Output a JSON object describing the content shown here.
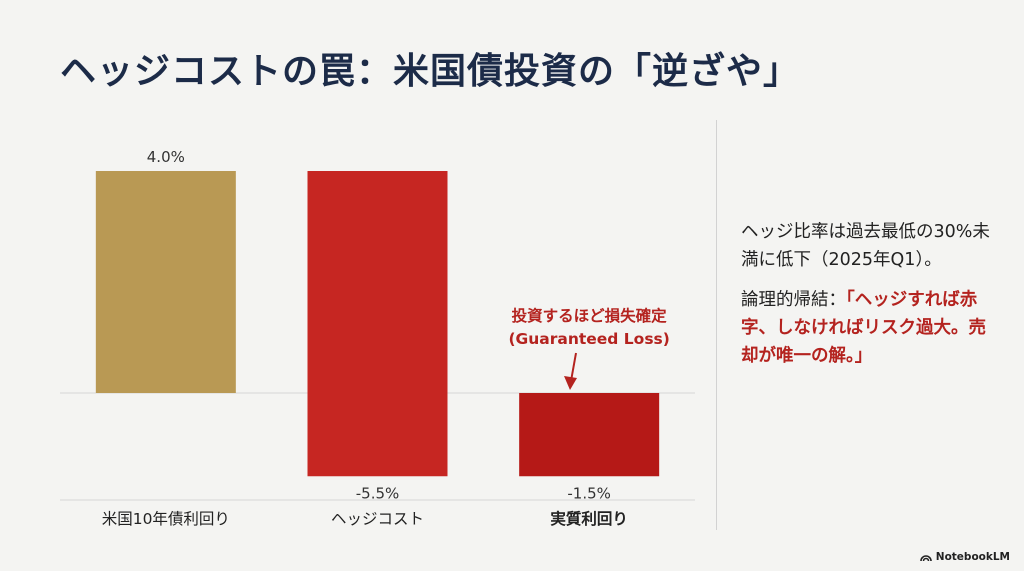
{
  "slide": {
    "title": "ヘッジコストの罠：米国債投資の「逆ざや」"
  },
  "chart_data": {
    "type": "bar",
    "categories": [
      "米国10年債利回り",
      "ヘッジコスト",
      "実質利回り"
    ],
    "values": [
      4.0,
      -5.5,
      -1.5
    ],
    "value_labels": [
      "4.0%",
      "-5.5%",
      "-1.5%"
    ],
    "colors": [
      "#b99954",
      "#c62622",
      "#b51917"
    ],
    "bold_category": "実質利回り",
    "annotation": {
      "line1": "投資するほど損失確定",
      "line2": "(Guaranteed Loss)",
      "color": "#b4231f"
    },
    "grid": false
  },
  "side": {
    "note": "ヘッジ比率は過去最低の30%未満に低下（2025年Q1）。",
    "conclusion_label": "論理的帰結：",
    "conclusion_quote": "「ヘッジすれば赤字、しなければリスク過大。売却が唯一の解。」"
  },
  "watermark": {
    "label": "NotebookLM",
    "icon": "notebooklm-logo-icon"
  }
}
